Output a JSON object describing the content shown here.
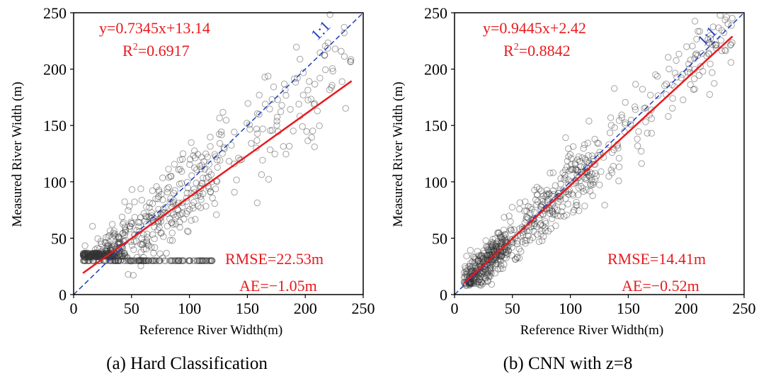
{
  "chart_data": [
    {
      "type": "scatter",
      "title": "",
      "caption": "(a) Hard Classification",
      "xlabel": "Reference River Width(m)",
      "ylabel": "Measured River Width (m)",
      "xlim": [
        0,
        250
      ],
      "ylim": [
        0,
        250
      ],
      "xticks": [
        "0",
        "50",
        "100",
        "150",
        "200",
        "250"
      ],
      "yticks": [
        "0",
        "50",
        "100",
        "150",
        "200",
        "250"
      ],
      "grid": false,
      "regression": {
        "slope": 0.7345,
        "intercept": 13.14,
        "x_range": [
          8,
          240
        ]
      },
      "equation_label": "y=0.7345x+13.14",
      "r2_prefix": "R",
      "r2_sup": "2",
      "r2_value": "=0.6917",
      "reference_line_label": "1:1",
      "rmse_label": "RMSE=22.53m",
      "ae_label": "AE=−1.05m",
      "colors": {
        "points": "#333333",
        "fit": "#e8191d",
        "reference": "#1f3fbf"
      },
      "point_clusters": [
        {
          "x_range": [
            8,
            45
          ],
          "spread": 10,
          "n": 260,
          "floor": 33
        },
        {
          "x_range": [
            45,
            120
          ],
          "spread": 18,
          "n": 220,
          "floor": 0
        },
        {
          "x_range": [
            120,
            240
          ],
          "spread": 26,
          "n": 120,
          "floor": 0
        },
        {
          "x_range": [
            8,
            120
          ],
          "fixed_y": 30,
          "n": 150
        }
      ]
    },
    {
      "type": "scatter",
      "title": "",
      "caption": "(b) CNN with z=8",
      "xlabel": "Reference River Width(m)",
      "ylabel": "Measured River Width (m)",
      "xlim": [
        0,
        250
      ],
      "ylim": [
        0,
        250
      ],
      "xticks": [
        "0",
        "50",
        "100",
        "150",
        "200",
        "250"
      ],
      "yticks": [
        "0",
        "50",
        "100",
        "150",
        "200",
        "250"
      ],
      "grid": false,
      "regression": {
        "slope": 0.9445,
        "intercept": 2.42,
        "x_range": [
          8,
          240
        ]
      },
      "equation_label": "y=0.9445x+2.42",
      "r2_prefix": "R",
      "r2_sup": "2",
      "r2_value": "=0.8842",
      "reference_line_label": "1:1",
      "rmse_label": "RMSE=14.41m",
      "ae_label": "AE=−0.52m",
      "colors": {
        "points": "#333333",
        "fit": "#e8191d",
        "reference": "#1f3fbf"
      },
      "point_clusters": [
        {
          "x_range": [
            8,
            45
          ],
          "spread": 9,
          "n": 320,
          "floor": 8
        },
        {
          "x_range": [
            45,
            120
          ],
          "spread": 14,
          "n": 260,
          "floor": 0
        },
        {
          "x_range": [
            120,
            240
          ],
          "spread": 18,
          "n": 140,
          "floor": 0
        }
      ]
    }
  ]
}
